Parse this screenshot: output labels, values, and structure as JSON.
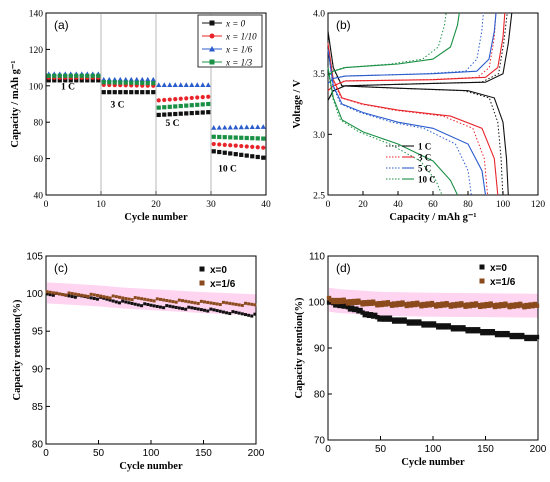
{
  "chart_data": [
    {
      "panel": "(a)",
      "type": "scatter",
      "xlabel": "Cycle number",
      "ylabel": "Capacity / mAh g⁻¹",
      "xlim": [
        0,
        40
      ],
      "ylim": [
        40,
        140
      ],
      "xticks": [
        0,
        10,
        20,
        30,
        40
      ],
      "yticks": [
        40,
        60,
        80,
        100,
        120,
        140
      ],
      "legend_position": "top-right",
      "annotations": [
        {
          "text": "1 C",
          "x": 4,
          "y": 98
        },
        {
          "text": "3 C",
          "x": 13,
          "y": 88
        },
        {
          "text": "5 C",
          "x": 23,
          "y": 78
        },
        {
          "text": "10 C",
          "x": 33,
          "y": 53
        }
      ],
      "series": [
        {
          "name": "x = 0",
          "color": "#111111",
          "marker": "square",
          "segments": [
            [
              1,
              10,
              103,
              103
            ],
            [
              11,
              20,
              96.5,
              96.5
            ],
            [
              21,
              30,
              84,
              85.5
            ],
            [
              31,
              40,
              64,
              60.5
            ]
          ]
        },
        {
          "name": "x = 1/10",
          "color": "#e8242a",
          "marker": "circle",
          "segments": [
            [
              1,
              10,
              104.5,
              104.5
            ],
            [
              11,
              20,
              100.5,
              100
            ],
            [
              21,
              30,
              92,
              94
            ],
            [
              31,
              40,
              68,
              66
            ]
          ]
        },
        {
          "name": "x = 1/6",
          "color": "#2b5ccc",
          "marker": "triangle",
          "segments": [
            [
              1,
              10,
              106.5,
              106.5
            ],
            [
              11,
              20,
              103.5,
              103.5
            ],
            [
              21,
              30,
              100.5,
              100.5
            ],
            [
              31,
              40,
              77,
              77.5
            ]
          ]
        },
        {
          "name": "x = 1/3",
          "color": "#1a9045",
          "marker": "square",
          "segments": [
            [
              1,
              10,
              105.5,
              105.5
            ],
            [
              11,
              20,
              102,
              101.5
            ],
            [
              21,
              30,
              88,
              90
            ],
            [
              31,
              40,
              72,
              71
            ]
          ]
        }
      ]
    },
    {
      "panel": "(b)",
      "type": "line",
      "xlabel": "Capacity / mAh g⁻¹",
      "ylabel": "Voltage / V",
      "xlim": [
        0,
        120
      ],
      "ylim": [
        2.5,
        4.0
      ],
      "xticks": [
        0,
        20,
        40,
        60,
        80,
        100,
        120
      ],
      "yticks": [
        2.5,
        3.0,
        3.5,
        4.0
      ],
      "legend_position": "bottom-right",
      "series": [
        {
          "name": "1 C",
          "color": "#111111",
          "charge": [
            [
              0,
              3.28
            ],
            [
              3,
              3.36
            ],
            [
              10,
              3.4
            ],
            [
              60,
              3.42
            ],
            [
              90,
              3.43
            ],
            [
              100,
              3.5
            ],
            [
              103,
              3.75
            ],
            [
              105,
              4.0
            ]
          ],
          "discharge": [
            [
              0,
              3.85
            ],
            [
              3,
              3.55
            ],
            [
              8,
              3.4
            ],
            [
              40,
              3.38
            ],
            [
              80,
              3.36
            ],
            [
              95,
              3.3
            ],
            [
              100,
              3.1
            ],
            [
              102,
              2.8
            ],
            [
              103,
              2.5
            ]
          ]
        },
        {
          "name": "3 C",
          "color": "#e8242a",
          "charge": [
            [
              0,
              3.36
            ],
            [
              3,
              3.4
            ],
            [
              10,
              3.44
            ],
            [
              60,
              3.45
            ],
            [
              90,
              3.47
            ],
            [
              97,
              3.55
            ],
            [
              100,
              3.8
            ],
            [
              101,
              4.0
            ]
          ],
          "discharge": [
            [
              0,
              3.75
            ],
            [
              3,
              3.45
            ],
            [
              8,
              3.3
            ],
            [
              20,
              3.25
            ],
            [
              40,
              3.2
            ],
            [
              70,
              3.15
            ],
            [
              88,
              3.05
            ],
            [
              95,
              2.8
            ],
            [
              97,
              2.5
            ]
          ]
        },
        {
          "name": "5 C",
          "color": "#2b5ccc",
          "charge": [
            [
              0,
              3.42
            ],
            [
              3,
              3.46
            ],
            [
              10,
              3.48
            ],
            [
              60,
              3.5
            ],
            [
              85,
              3.52
            ],
            [
              92,
              3.62
            ],
            [
              95,
              3.85
            ],
            [
              96,
              4.0
            ]
          ],
          "discharge": [
            [
              0,
              3.7
            ],
            [
              3,
              3.4
            ],
            [
              8,
              3.25
            ],
            [
              20,
              3.18
            ],
            [
              40,
              3.1
            ],
            [
              60,
              3.05
            ],
            [
              80,
              2.92
            ],
            [
              88,
              2.7
            ],
            [
              90,
              2.5
            ]
          ]
        },
        {
          "name": "10 C",
          "color": "#1a9045",
          "charge": [
            [
              0,
              3.48
            ],
            [
              3,
              3.52
            ],
            [
              10,
              3.55
            ],
            [
              40,
              3.58
            ],
            [
              60,
              3.62
            ],
            [
              70,
              3.72
            ],
            [
              74,
              3.9
            ],
            [
              75,
              4.0
            ]
          ],
          "discharge": [
            [
              0,
              3.55
            ],
            [
              3,
              3.3
            ],
            [
              8,
              3.12
            ],
            [
              20,
              3.02
            ],
            [
              40,
              2.92
            ],
            [
              60,
              2.78
            ],
            [
              70,
              2.62
            ],
            [
              74,
              2.5
            ]
          ]
        }
      ]
    },
    {
      "panel": "(c)",
      "type": "scatter",
      "xlabel": "Cycle number",
      "ylabel": "Capacity retention(%)",
      "xlim": [
        0,
        200
      ],
      "ylim": [
        80,
        105
      ],
      "xticks": [
        0,
        50,
        100,
        150,
        200
      ],
      "yticks": [
        80,
        85,
        90,
        95,
        100,
        105
      ],
      "legend_position": "top-right",
      "series": [
        {
          "name": "x=0",
          "color": "#111111",
          "marker": "square",
          "points": [
            [
              1,
              100
            ],
            [
              50,
              99.4
            ],
            [
              75,
              98.8
            ],
            [
              100,
              98.4
            ],
            [
              150,
              97.9
            ],
            [
              200,
              97.1
            ]
          ]
        },
        {
          "name": "x=1/6",
          "color": "#8b4a1c",
          "marker": "square",
          "points": [
            [
              1,
              100.1
            ],
            [
              50,
              99.7
            ],
            [
              75,
              99.4
            ],
            [
              100,
              99.2
            ],
            [
              150,
              98.8
            ],
            [
              200,
              98.5
            ]
          ]
        }
      ]
    },
    {
      "panel": "(d)",
      "type": "scatter",
      "xlabel": "Cycle number",
      "ylabel": "Capacity retention(%)",
      "xlim": [
        0,
        200
      ],
      "ylim": [
        70,
        110
      ],
      "xticks": [
        0,
        50,
        100,
        150,
        200
      ],
      "yticks": [
        70,
        80,
        90,
        100,
        110
      ],
      "legend_position": "top-right",
      "series": [
        {
          "name": "x=0",
          "color": "#111111",
          "marker": "square",
          "points": [
            [
              1,
              100
            ],
            [
              25,
              98.5
            ],
            [
              35,
              97.5
            ],
            [
              50,
              96.5
            ],
            [
              100,
              95
            ],
            [
              150,
              93.5
            ],
            [
              200,
              92
            ]
          ]
        },
        {
          "name": "x=1/6",
          "color": "#8b4a1c",
          "marker": "square",
          "points": [
            [
              1,
              100.5
            ],
            [
              10,
              100.2
            ],
            [
              50,
              99.6
            ],
            [
              100,
              99.4
            ],
            [
              150,
              99.3
            ],
            [
              200,
              99.2
            ]
          ]
        }
      ]
    }
  ]
}
